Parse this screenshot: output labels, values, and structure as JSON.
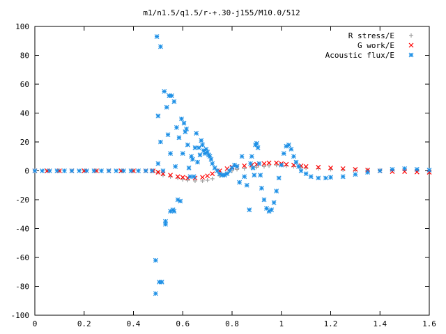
{
  "chart_data": {
    "type": "scatter",
    "title": "m1/n1.5/q1.5/r-+.30-j155/M10.0/512",
    "xlabel": "",
    "ylabel": "",
    "xlim": [
      0,
      1.6
    ],
    "ylim": [
      -100,
      100
    ],
    "x_ticks": [
      "0",
      "0.2",
      "0.4",
      "0.6",
      "0.8",
      "1",
      "1.2",
      "1.4",
      "1.6"
    ],
    "y_ticks": [
      "100",
      "80",
      "60",
      "40",
      "20",
      "0",
      "-20",
      "-40",
      "-60",
      "-80",
      "-100"
    ],
    "grid": false,
    "legend_position": "top-right",
    "series": [
      {
        "name": "R stress/E",
        "marker": "+",
        "color": "#a0a0a0",
        "points": [
          [
            0.0,
            0
          ],
          [
            0.05,
            0
          ],
          [
            0.1,
            0
          ],
          [
            0.15,
            0
          ],
          [
            0.2,
            0
          ],
          [
            0.25,
            0
          ],
          [
            0.3,
            0
          ],
          [
            0.35,
            0
          ],
          [
            0.4,
            0
          ],
          [
            0.45,
            0
          ],
          [
            0.48,
            0
          ],
          [
            0.5,
            -1
          ],
          [
            0.52,
            -3
          ],
          [
            0.55,
            -4
          ],
          [
            0.58,
            -5
          ],
          [
            0.6,
            -6
          ],
          [
            0.62,
            -6.5
          ],
          [
            0.65,
            -7
          ],
          [
            0.68,
            -7
          ],
          [
            0.7,
            -6.5
          ],
          [
            0.72,
            -5.5
          ],
          [
            0.75,
            -3.5
          ],
          [
            0.78,
            -1.5
          ],
          [
            0.8,
            0
          ],
          [
            0.82,
            1
          ],
          [
            0.85,
            1.5
          ],
          [
            0.88,
            2
          ],
          [
            0.9,
            2.5
          ],
          [
            0.93,
            3
          ],
          [
            0.95,
            3.5
          ],
          [
            0.98,
            4
          ],
          [
            1.0,
            4
          ],
          [
            1.02,
            3.5
          ],
          [
            1.05,
            3
          ],
          [
            1.08,
            2.5
          ],
          [
            1.1,
            2
          ],
          [
            1.15,
            1.5
          ],
          [
            1.2,
            1
          ],
          [
            1.25,
            0.8
          ],
          [
            1.3,
            0.6
          ],
          [
            1.35,
            0.5
          ],
          [
            1.4,
            0.5
          ],
          [
            1.45,
            0.5
          ],
          [
            1.5,
            0.5
          ],
          [
            1.55,
            0.5
          ],
          [
            1.6,
            0.5
          ]
        ]
      },
      {
        "name": "G work/E",
        "marker": "x",
        "color": "#ff0000",
        "points": [
          [
            0.0,
            0
          ],
          [
            0.05,
            0
          ],
          [
            0.1,
            0
          ],
          [
            0.15,
            0
          ],
          [
            0.2,
            0
          ],
          [
            0.25,
            0
          ],
          [
            0.3,
            0
          ],
          [
            0.35,
            0
          ],
          [
            0.4,
            0
          ],
          [
            0.45,
            0
          ],
          [
            0.48,
            0
          ],
          [
            0.5,
            -1
          ],
          [
            0.52,
            -2
          ],
          [
            0.55,
            -3
          ],
          [
            0.58,
            -4
          ],
          [
            0.6,
            -4.5
          ],
          [
            0.62,
            -5
          ],
          [
            0.65,
            -5
          ],
          [
            0.68,
            -4.5
          ],
          [
            0.7,
            -3.5
          ],
          [
            0.72,
            -2
          ],
          [
            0.75,
            0
          ],
          [
            0.78,
            1.5
          ],
          [
            0.8,
            2.5
          ],
          [
            0.82,
            3
          ],
          [
            0.85,
            3.5
          ],
          [
            0.88,
            4
          ],
          [
            0.9,
            4.5
          ],
          [
            0.93,
            5
          ],
          [
            0.95,
            5.5
          ],
          [
            0.98,
            5.5
          ],
          [
            1.0,
            5
          ],
          [
            1.02,
            4.5
          ],
          [
            1.05,
            4
          ],
          [
            1.08,
            3.5
          ],
          [
            1.1,
            3
          ],
          [
            1.15,
            2.5
          ],
          [
            1.2,
            2
          ],
          [
            1.25,
            1.5
          ],
          [
            1.3,
            1
          ],
          [
            1.35,
            0.5
          ],
          [
            1.4,
            0
          ],
          [
            1.45,
            -0.5
          ],
          [
            1.5,
            -0.5
          ],
          [
            1.55,
            -0.8
          ],
          [
            1.6,
            -1
          ]
        ]
      },
      {
        "name": "Acoustic flux/E",
        "marker": "*",
        "color": "#1e90e6",
        "points": [
          [
            0.0,
            0
          ],
          [
            0.03,
            0
          ],
          [
            0.06,
            0
          ],
          [
            0.09,
            0
          ],
          [
            0.12,
            0
          ],
          [
            0.15,
            0
          ],
          [
            0.18,
            0
          ],
          [
            0.21,
            0
          ],
          [
            0.24,
            0
          ],
          [
            0.27,
            0
          ],
          [
            0.3,
            0
          ],
          [
            0.33,
            0
          ],
          [
            0.36,
            0
          ],
          [
            0.39,
            0
          ],
          [
            0.42,
            0
          ],
          [
            0.45,
            0
          ],
          [
            0.475,
            0
          ],
          [
            0.49,
            -85
          ],
          [
            0.49,
            -62
          ],
          [
            0.495,
            93
          ],
          [
            0.5,
            38
          ],
          [
            0.5,
            5
          ],
          [
            0.505,
            -77
          ],
          [
            0.51,
            86
          ],
          [
            0.51,
            20
          ],
          [
            0.515,
            -77
          ],
          [
            0.52,
            0
          ],
          [
            0.525,
            55
          ],
          [
            0.53,
            -35
          ],
          [
            0.53,
            -37
          ],
          [
            0.535,
            44
          ],
          [
            0.54,
            25
          ],
          [
            0.545,
            52
          ],
          [
            0.55,
            -28
          ],
          [
            0.55,
            12
          ],
          [
            0.555,
            52
          ],
          [
            0.56,
            -27
          ],
          [
            0.565,
            48
          ],
          [
            0.565,
            -28
          ],
          [
            0.57,
            3
          ],
          [
            0.575,
            30
          ],
          [
            0.58,
            -20
          ],
          [
            0.585,
            23
          ],
          [
            0.59,
            -21
          ],
          [
            0.595,
            36
          ],
          [
            0.6,
            12
          ],
          [
            0.605,
            33
          ],
          [
            0.61,
            27
          ],
          [
            0.615,
            29
          ],
          [
            0.62,
            18
          ],
          [
            0.625,
            2
          ],
          [
            0.63,
            -4
          ],
          [
            0.635,
            10
          ],
          [
            0.64,
            8
          ],
          [
            0.645,
            -4
          ],
          [
            0.65,
            16
          ],
          [
            0.655,
            26
          ],
          [
            0.66,
            6
          ],
          [
            0.665,
            16
          ],
          [
            0.67,
            11
          ],
          [
            0.675,
            21
          ],
          [
            0.68,
            18
          ],
          [
            0.685,
            14
          ],
          [
            0.69,
            12
          ],
          [
            0.695,
            15
          ],
          [
            0.7,
            13
          ],
          [
            0.705,
            11
          ],
          [
            0.71,
            10
          ],
          [
            0.715,
            8
          ],
          [
            0.72,
            5
          ],
          [
            0.73,
            2
          ],
          [
            0.74,
            0
          ],
          [
            0.75,
            -2
          ],
          [
            0.76,
            -3
          ],
          [
            0.77,
            -3
          ],
          [
            0.78,
            -2
          ],
          [
            0.79,
            0
          ],
          [
            0.8,
            2
          ],
          [
            0.81,
            4
          ],
          [
            0.82,
            3
          ],
          [
            0.83,
            -8
          ],
          [
            0.84,
            10
          ],
          [
            0.85,
            -4
          ],
          [
            0.86,
            -10
          ],
          [
            0.87,
            -27
          ],
          [
            0.875,
            5
          ],
          [
            0.88,
            10
          ],
          [
            0.885,
            2
          ],
          [
            0.89,
            -3
          ],
          [
            0.895,
            18
          ],
          [
            0.9,
            19
          ],
          [
            0.905,
            16
          ],
          [
            0.91,
            5
          ],
          [
            0.915,
            -3
          ],
          [
            0.92,
            -12
          ],
          [
            0.93,
            -20
          ],
          [
            0.94,
            -26
          ],
          [
            0.95,
            -28
          ],
          [
            0.96,
            -27
          ],
          [
            0.97,
            -22
          ],
          [
            0.98,
            -14
          ],
          [
            0.99,
            -5
          ],
          [
            1.0,
            4
          ],
          [
            1.01,
            12
          ],
          [
            1.02,
            17
          ],
          [
            1.03,
            18
          ],
          [
            1.04,
            15
          ],
          [
            1.05,
            10
          ],
          [
            1.06,
            6
          ],
          [
            1.07,
            3
          ],
          [
            1.08,
            0
          ],
          [
            1.1,
            -2
          ],
          [
            1.12,
            -4
          ],
          [
            1.15,
            -5
          ],
          [
            1.18,
            -5
          ],
          [
            1.2,
            -4.5
          ],
          [
            1.25,
            -4
          ],
          [
            1.3,
            -2.5
          ],
          [
            1.35,
            -1
          ],
          [
            1.4,
            0
          ],
          [
            1.45,
            1
          ],
          [
            1.5,
            1.5
          ],
          [
            1.55,
            1
          ],
          [
            1.6,
            0.5
          ]
        ]
      }
    ]
  }
}
